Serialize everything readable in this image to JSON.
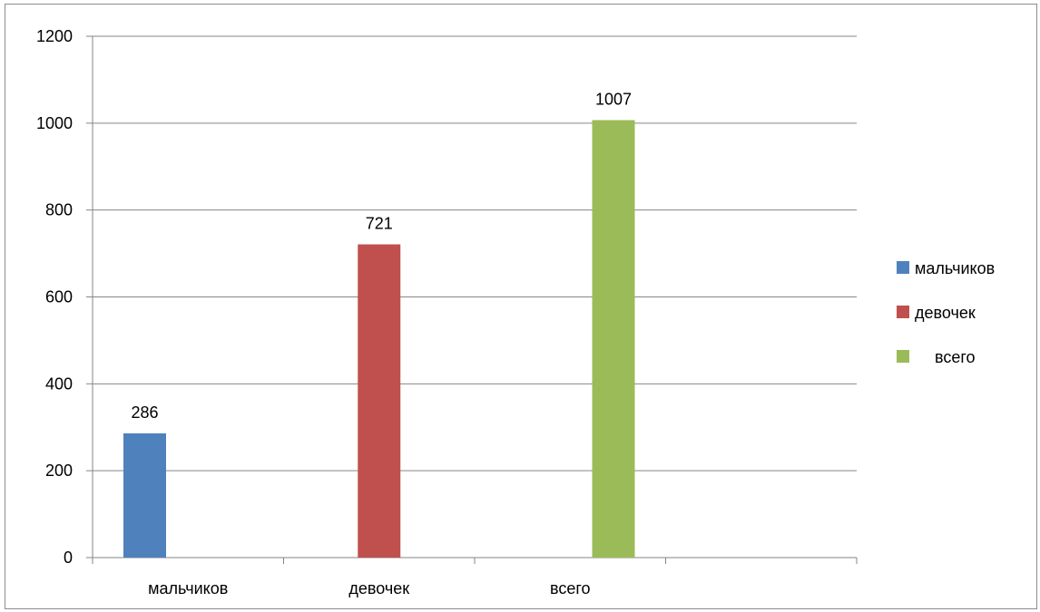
{
  "chart_data": {
    "type": "bar",
    "categories": [
      "мальчиков",
      "девочек",
      "всего"
    ],
    "series": [
      {
        "name": "мальчиков",
        "values": [
          286,
          null,
          null
        ],
        "color": "#4f81bd"
      },
      {
        "name": "девочек",
        "values": [
          null,
          721,
          null
        ],
        "color": "#c0504d"
      },
      {
        "name": "всего",
        "values": [
          null,
          null,
          1007
        ],
        "color": "#9bbb59"
      }
    ],
    "data_labels": [
      "286",
      "721",
      "1007"
    ],
    "y_ticks": [
      "0",
      "200",
      "400",
      "600",
      "800",
      "1000",
      "1200"
    ],
    "ylim": [
      0,
      1200
    ],
    "grid": true,
    "legend_position": "right",
    "legend": [
      {
        "label": "мальчиков",
        "color": "#4f81bd"
      },
      {
        "label": "девочек",
        "color": "#c0504d"
      },
      {
        "label": "всего",
        "color": "#9bbb59"
      }
    ]
  }
}
